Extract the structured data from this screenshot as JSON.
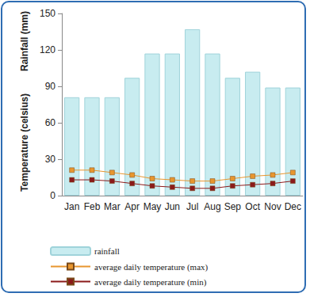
{
  "chart_data": {
    "type": "bar",
    "ylabels": [
      "Rainfall (mm)",
      "Temperature (celsius)"
    ],
    "categories": [
      "Jan",
      "Feb",
      "Mar",
      "Apr",
      "May",
      "Jun",
      "Jul",
      "Aug",
      "Sep",
      "Oct",
      "Nov",
      "Dec"
    ],
    "series": [
      {
        "name": "rainfall",
        "type": "bar",
        "color": "#c8ecf0",
        "values": [
          81,
          81,
          81,
          97,
          117,
          117,
          137,
          117,
          97,
          102,
          89,
          89
        ]
      },
      {
        "name": "average daily temperature (max)",
        "type": "line",
        "color": "#e8962e",
        "marker": "square",
        "values": [
          21,
          21,
          19,
          17,
          14,
          13,
          12,
          12,
          14,
          16,
          17,
          19
        ]
      },
      {
        "name": "average daily temperature (min)",
        "type": "line",
        "color": "#8b1a1a",
        "marker": "square",
        "values": [
          13,
          13,
          12,
          10,
          8,
          7,
          6,
          6,
          8,
          9,
          10,
          12
        ]
      }
    ],
    "ylim": [
      0,
      150
    ],
    "yticks": [
      0,
      30,
      60,
      90,
      120,
      150
    ],
    "grid": false,
    "legend": "bottom left"
  }
}
